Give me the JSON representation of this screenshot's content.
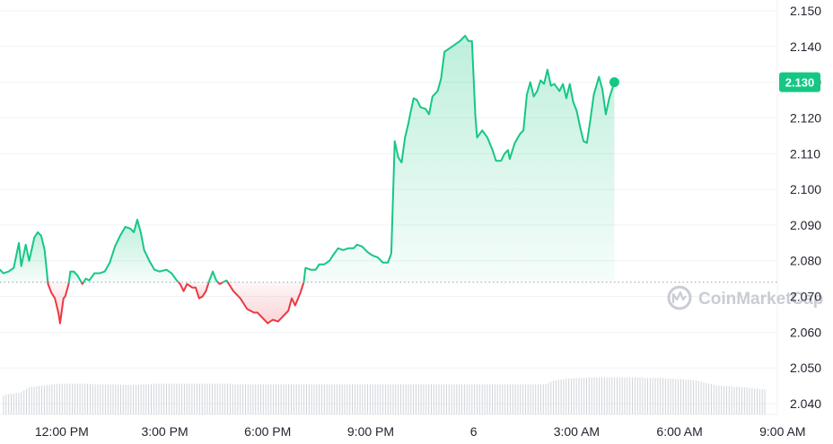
{
  "chart_data": {
    "type": "area",
    "baseline": 2.074,
    "current_value": "2.130",
    "watermark": "CoinMarketCap",
    "colors": {
      "up": "#16c784",
      "down": "#ea3943",
      "volume": "#cfd3da",
      "grid": "#eff2f5"
    },
    "y_ticks": [
      "2.150",
      "2.140",
      "2.130",
      "2.120",
      "2.110",
      "2.100",
      "2.090",
      "2.080",
      "2.070",
      "2.060",
      "2.050",
      "2.040"
    ],
    "ylim": [
      2.037,
      2.153
    ],
    "xlim": [
      10.2,
      32.9
    ],
    "x_ticks": [
      {
        "label": "12:00 PM",
        "t": 12
      },
      {
        "label": "3:00 PM",
        "t": 15
      },
      {
        "label": "6:00 PM",
        "t": 18
      },
      {
        "label": "9:00 PM",
        "t": 21
      },
      {
        "label": "6",
        "t": 24
      },
      {
        "label": "3:00 AM",
        "t": 27
      },
      {
        "label": "6:00 AM",
        "t": 30
      },
      {
        "label": "9:00 AM",
        "t": 33
      }
    ],
    "series": [
      {
        "values": [
          [
            10.2,
            2.0775
          ],
          [
            10.3,
            2.0765
          ],
          [
            10.45,
            2.077
          ],
          [
            10.6,
            2.078
          ],
          [
            10.75,
            2.085
          ],
          [
            10.82,
            2.0785
          ],
          [
            10.95,
            2.0845
          ],
          [
            11.05,
            2.08
          ],
          [
            11.2,
            2.0865
          ],
          [
            11.3,
            2.088
          ],
          [
            11.4,
            2.087
          ],
          [
            11.5,
            2.083
          ],
          [
            11.6,
            2.0735
          ],
          [
            11.7,
            2.071
          ],
          [
            11.8,
            2.0695
          ],
          [
            11.9,
            2.0655
          ],
          [
            11.95,
            2.0625
          ],
          [
            12.05,
            2.0695
          ],
          [
            12.1,
            2.07
          ],
          [
            12.2,
            2.0735
          ],
          [
            12.25,
            2.077
          ],
          [
            12.35,
            2.077
          ],
          [
            12.45,
            2.076
          ],
          [
            12.6,
            2.0735
          ],
          [
            12.7,
            2.075
          ],
          [
            12.8,
            2.0745
          ],
          [
            12.95,
            2.0765
          ],
          [
            13.1,
            2.0765
          ],
          [
            13.25,
            2.077
          ],
          [
            13.4,
            2.0795
          ],
          [
            13.55,
            2.084
          ],
          [
            13.7,
            2.087
          ],
          [
            13.85,
            2.0895
          ],
          [
            14.0,
            2.089
          ],
          [
            14.1,
            2.088
          ],
          [
            14.2,
            2.0915
          ],
          [
            14.3,
            2.088
          ],
          [
            14.4,
            2.083
          ],
          [
            14.55,
            2.08
          ],
          [
            14.7,
            2.0775
          ],
          [
            14.85,
            2.077
          ],
          [
            15.05,
            2.0775
          ],
          [
            15.2,
            2.0765
          ],
          [
            15.35,
            2.0745
          ],
          [
            15.45,
            2.0735
          ],
          [
            15.55,
            2.0715
          ],
          [
            15.65,
            2.0735
          ],
          [
            15.8,
            2.0725
          ],
          [
            15.9,
            2.0725
          ],
          [
            16.0,
            2.0695
          ],
          [
            16.1,
            2.07
          ],
          [
            16.2,
            2.0715
          ],
          [
            16.3,
            2.0745
          ],
          [
            16.4,
            2.077
          ],
          [
            16.5,
            2.0745
          ],
          [
            16.6,
            2.0735
          ],
          [
            16.7,
            2.074
          ],
          [
            16.8,
            2.0745
          ],
          [
            16.9,
            2.073
          ],
          [
            17.0,
            2.0715
          ],
          [
            17.2,
            2.0695
          ],
          [
            17.4,
            2.0665
          ],
          [
            17.6,
            2.0655
          ],
          [
            17.7,
            2.0655
          ],
          [
            17.85,
            2.064
          ],
          [
            18.0,
            2.0625
          ],
          [
            18.15,
            2.0635
          ],
          [
            18.3,
            2.063
          ],
          [
            18.45,
            2.0645
          ],
          [
            18.6,
            2.066
          ],
          [
            18.7,
            2.0695
          ],
          [
            18.8,
            2.0675
          ],
          [
            18.95,
            2.071
          ],
          [
            19.05,
            2.074
          ],
          [
            19.1,
            2.078
          ],
          [
            19.25,
            2.0775
          ],
          [
            19.4,
            2.0775
          ],
          [
            19.5,
            2.079
          ],
          [
            19.65,
            2.079
          ],
          [
            19.8,
            2.08
          ],
          [
            19.9,
            2.0815
          ],
          [
            20.05,
            2.0835
          ],
          [
            20.2,
            2.083
          ],
          [
            20.35,
            2.0835
          ],
          [
            20.5,
            2.0835
          ],
          [
            20.6,
            2.0845
          ],
          [
            20.75,
            2.084
          ],
          [
            20.9,
            2.0825
          ],
          [
            21.05,
            2.0815
          ],
          [
            21.2,
            2.081
          ],
          [
            21.35,
            2.0795
          ],
          [
            21.5,
            2.0795
          ],
          [
            21.6,
            2.082
          ],
          [
            21.7,
            2.1135
          ],
          [
            21.8,
            2.109
          ],
          [
            21.9,
            2.1075
          ],
          [
            22.0,
            2.1145
          ],
          [
            22.1,
            2.1185
          ],
          [
            22.15,
            2.121
          ],
          [
            22.25,
            2.1255
          ],
          [
            22.35,
            2.125
          ],
          [
            22.45,
            2.123
          ],
          [
            22.6,
            2.1225
          ],
          [
            22.7,
            2.121
          ],
          [
            22.8,
            2.126
          ],
          [
            22.95,
            2.1275
          ],
          [
            23.05,
            2.131
          ],
          [
            23.15,
            2.1385
          ],
          [
            23.3,
            2.1395
          ],
          [
            23.45,
            2.1405
          ],
          [
            23.6,
            2.1415
          ],
          [
            23.75,
            2.143
          ],
          [
            23.85,
            2.1415
          ],
          [
            23.95,
            2.1415
          ],
          [
            24.05,
            2.1205
          ],
          [
            24.1,
            2.1145
          ],
          [
            24.25,
            2.1165
          ],
          [
            24.4,
            2.1145
          ],
          [
            24.55,
            2.111
          ],
          [
            24.65,
            2.108
          ],
          [
            24.8,
            2.108
          ],
          [
            24.9,
            2.11
          ],
          [
            25.0,
            2.111
          ],
          [
            25.05,
            2.1085
          ],
          [
            25.2,
            2.113
          ],
          [
            25.35,
            2.1155
          ],
          [
            25.45,
            2.1165
          ],
          [
            25.55,
            2.1265
          ],
          [
            25.65,
            2.13
          ],
          [
            25.75,
            2.126
          ],
          [
            25.85,
            2.1275
          ],
          [
            25.95,
            2.1305
          ],
          [
            26.05,
            2.1295
          ],
          [
            26.15,
            2.1335
          ],
          [
            26.25,
            2.129
          ],
          [
            26.35,
            2.1295
          ],
          [
            26.5,
            2.1275
          ],
          [
            26.6,
            2.1295
          ],
          [
            26.7,
            2.1255
          ],
          [
            26.8,
            2.1295
          ],
          [
            26.9,
            2.1245
          ],
          [
            27.0,
            2.122
          ],
          [
            27.1,
            2.1175
          ],
          [
            27.2,
            2.1135
          ],
          [
            27.3,
            2.113
          ],
          [
            27.4,
            2.1195
          ],
          [
            27.5,
            2.1265
          ],
          [
            27.65,
            2.1315
          ],
          [
            27.75,
            2.128
          ],
          [
            27.85,
            2.121
          ],
          [
            27.95,
            2.1255
          ],
          [
            28.1,
            2.13
          ]
        ]
      }
    ],
    "volume": [
      0.3,
      0.32,
      0.32,
      0.33,
      0.33,
      0.34,
      0.34,
      0.36,
      0.38,
      0.4,
      0.43,
      0.44,
      0.44,
      0.45,
      0.45,
      0.46,
      0.46,
      0.47,
      0.47,
      0.48,
      0.48,
      0.48,
      0.49,
      0.49,
      0.49,
      0.49,
      0.49,
      0.49,
      0.49,
      0.49,
      0.49,
      0.49,
      0.49,
      0.49,
      0.49,
      0.48,
      0.48,
      0.48,
      0.48,
      0.48,
      0.48,
      0.48,
      0.48,
      0.48,
      0.48,
      0.47,
      0.47,
      0.47,
      0.47,
      0.47,
      0.47,
      0.47,
      0.47,
      0.47,
      0.48,
      0.48,
      0.48,
      0.48,
      0.48,
      0.49,
      0.49,
      0.49,
      0.49,
      0.49,
      0.49,
      0.49,
      0.49,
      0.49,
      0.49,
      0.49,
      0.49,
      0.49,
      0.49,
      0.49,
      0.49,
      0.49,
      0.49,
      0.49,
      0.49,
      0.49,
      0.49,
      0.49,
      0.49,
      0.49,
      0.49,
      0.49,
      0.49,
      0.49,
      0.49,
      0.49,
      0.48,
      0.48,
      0.48,
      0.48,
      0.48,
      0.48,
      0.48,
      0.48,
      0.48,
      0.48,
      0.48,
      0.48,
      0.48,
      0.48,
      0.48,
      0.48,
      0.48,
      0.48,
      0.48,
      0.48,
      0.48,
      0.48,
      0.48,
      0.48,
      0.48,
      0.48,
      0.48,
      0.48,
      0.48,
      0.48,
      0.48,
      0.48,
      0.48,
      0.48,
      0.48,
      0.48,
      0.48,
      0.48,
      0.48,
      0.48,
      0.48,
      0.48,
      0.48,
      0.48,
      0.48,
      0.48,
      0.48,
      0.48,
      0.48,
      0.48,
      0.48,
      0.48,
      0.48,
      0.48,
      0.48,
      0.48,
      0.48,
      0.48,
      0.48,
      0.48,
      0.48,
      0.48,
      0.48,
      0.48,
      0.48,
      0.48,
      0.48,
      0.48,
      0.48,
      0.48,
      0.48,
      0.48,
      0.48,
      0.48,
      0.48,
      0.48,
      0.48,
      0.48,
      0.48,
      0.48,
      0.48,
      0.48,
      0.48,
      0.48,
      0.48,
      0.48,
      0.48,
      0.48,
      0.48,
      0.48,
      0.48,
      0.48,
      0.48,
      0.48,
      0.48,
      0.48,
      0.48,
      0.48,
      0.48,
      0.48,
      0.48,
      0.48,
      0.48,
      0.48,
      0.48,
      0.48,
      0.48,
      0.48,
      0.48,
      0.48,
      0.48,
      0.48,
      0.48,
      0.48,
      0.48,
      0.48,
      0.48,
      0.48,
      0.48,
      0.48,
      0.48,
      0.48,
      0.48,
      0.48,
      0.5,
      0.52,
      0.53,
      0.54,
      0.55,
      0.56,
      0.56,
      0.57,
      0.57,
      0.57,
      0.58,
      0.58,
      0.58,
      0.58,
      0.58,
      0.58,
      0.59,
      0.59,
      0.59,
      0.59,
      0.59,
      0.59,
      0.59,
      0.59,
      0.59,
      0.59,
      0.59,
      0.59,
      0.59,
      0.59,
      0.59,
      0.59,
      0.59,
      0.59,
      0.59,
      0.59,
      0.59,
      0.59,
      0.58,
      0.58,
      0.58,
      0.58,
      0.58,
      0.58,
      0.58,
      0.58,
      0.57,
      0.57,
      0.57,
      0.57,
      0.56,
      0.56,
      0.56,
      0.56,
      0.55,
      0.55,
      0.55,
      0.54,
      0.54,
      0.53,
      0.52,
      0.51,
      0.5,
      0.49,
      0.48,
      0.47,
      0.46,
      0.46,
      0.46,
      0.45,
      0.45,
      0.45,
      0.45,
      0.44,
      0.44,
      0.44,
      0.43,
      0.43,
      0.43,
      0.42,
      0.42,
      0.41,
      0.41,
      0.4,
      0.4,
      0.4
    ]
  }
}
